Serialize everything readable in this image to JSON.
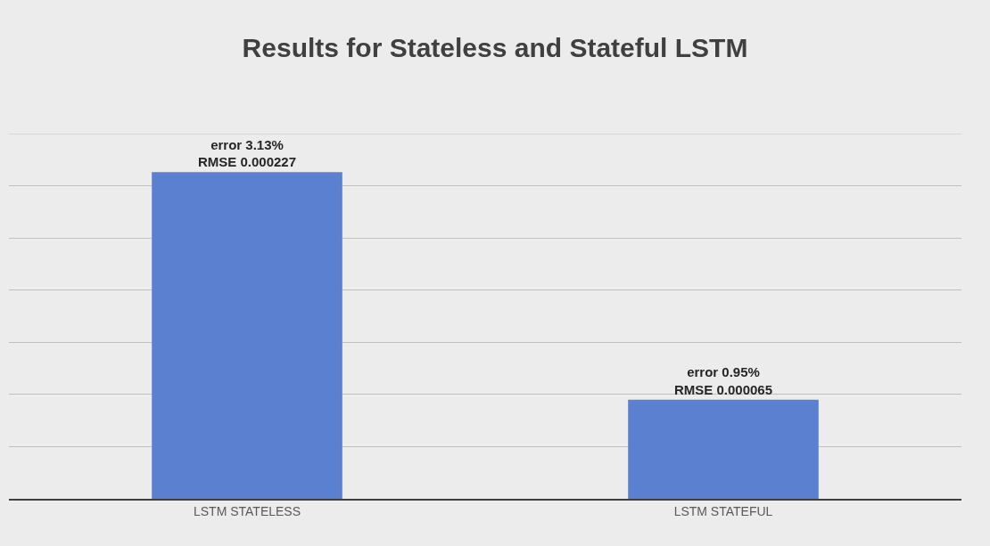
{
  "chart_data": {
    "type": "bar",
    "title": "Results for Stateless and Stateful LSTM",
    "categories": [
      "LSTM STATELESS",
      "LSTM STATEFUL"
    ],
    "values": [
      3.13,
      0.95
    ],
    "value_labels": [
      "error 3.13%\nRMSE 0.000227",
      "error 0.95%\nRMSE 0.000065"
    ],
    "color": "#5b80cf",
    "ylim": [
      0,
      3.5
    ],
    "yticks": [
      {
        "value": 0,
        "label": null
      },
      {
        "value": 0.5,
        "label": null
      },
      {
        "value": 1,
        "label": null
      },
      {
        "value": 1.5,
        "label": null
      },
      {
        "value": 2,
        "label": null
      },
      {
        "value": 2.5,
        "label": null
      },
      {
        "value": 3,
        "label": null
      },
      {
        "value": 3.5,
        "label": null
      }
    ],
    "grid": "y",
    "tick_labels": "x",
    "legend": false
  }
}
